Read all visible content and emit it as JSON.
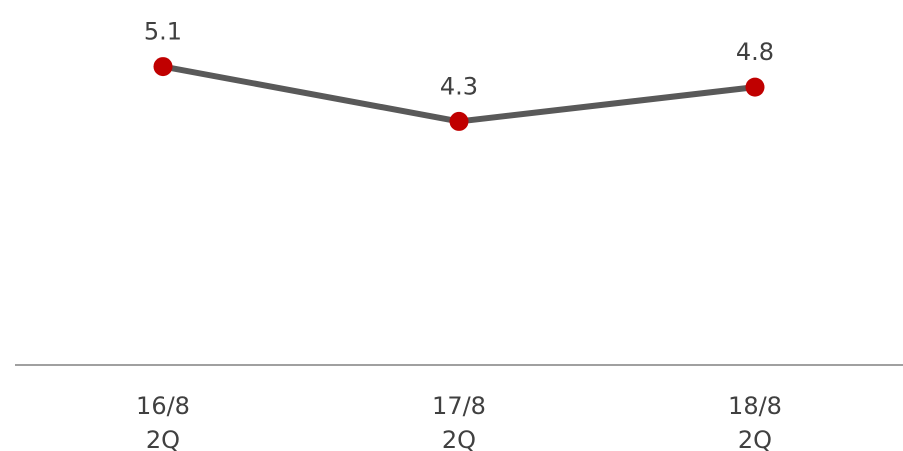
{
  "chart_data": {
    "type": "line",
    "categories": [
      [
        "16/8",
        "2Q"
      ],
      [
        "17/8",
        "2Q"
      ],
      [
        "18/8",
        "2Q"
      ]
    ],
    "series": [
      {
        "values": [
          5.1,
          4.3,
          4.8
        ],
        "data_labels": [
          "5.1",
          "4.3",
          "4.8"
        ],
        "line_color": "#595959",
        "marker_color": "#C00000"
      }
    ],
    "axis_color": "#808080",
    "title": "",
    "xlabel": "",
    "ylabel": "",
    "y_axis_visible": false,
    "grid": false,
    "legend": "none"
  }
}
